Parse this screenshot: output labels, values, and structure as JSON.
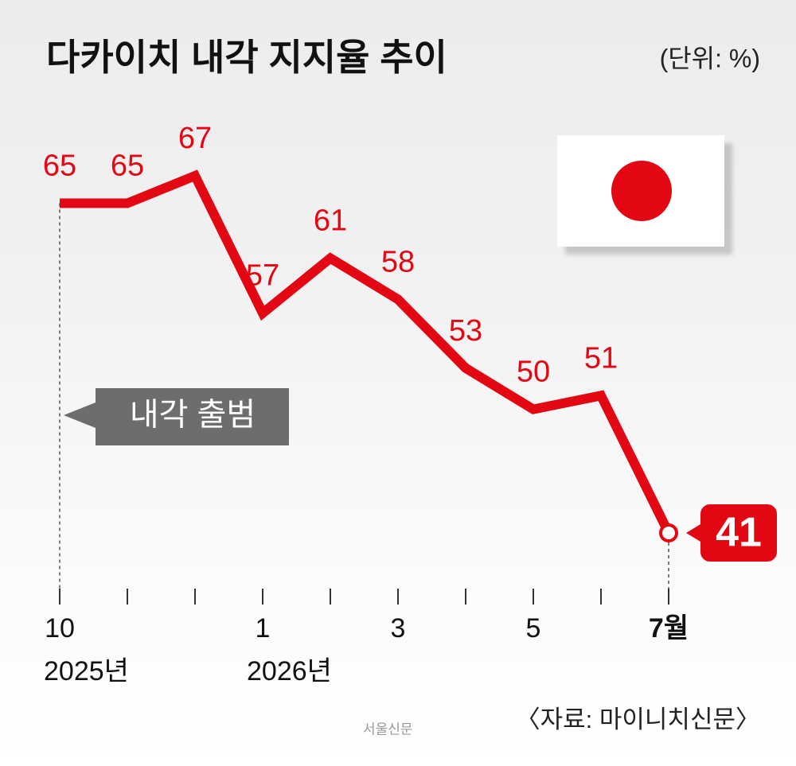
{
  "chart_data": {
    "type": "line",
    "title": "다카이치 내각 지지율 추이",
    "unit_label": "(단위: %)",
    "categories": [
      "10",
      null,
      null,
      "1",
      null,
      "3",
      null,
      "5",
      null,
      "7월"
    ],
    "year_labels": [
      "2025년",
      null,
      null,
      "2026년",
      null,
      null,
      null,
      null,
      null,
      null
    ],
    "values": [
      65,
      65,
      67,
      57,
      61,
      58,
      53,
      50,
      51,
      41
    ],
    "color": "#e30613",
    "annotation": "내각 출범",
    "source": "〈자료: 마이니치신문〉",
    "credit": "서울신문"
  }
}
